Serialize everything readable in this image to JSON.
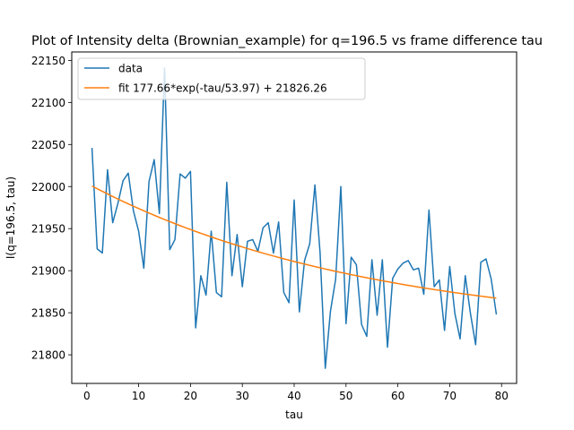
{
  "chart_data": {
    "type": "line",
    "title": "Plot of Intensity delta (Brownian_example) for q=196.5 vs frame difference tau",
    "xlabel": "tau",
    "ylabel": "I(q=196.5, tau)",
    "xlim": [
      -2.9,
      82.9
    ],
    "ylim": [
      21766,
      22160
    ],
    "xticks": [
      0,
      10,
      20,
      30,
      40,
      50,
      60,
      70,
      80
    ],
    "yticks": [
      21800,
      21850,
      21900,
      21950,
      22000,
      22050,
      22100,
      22150
    ],
    "grid": false,
    "legend_position": "top-left",
    "series": [
      {
        "name": "data",
        "color": "#1f77b4",
        "x": [
          1,
          2,
          3,
          4,
          5,
          6,
          7,
          8,
          9,
          10,
          11,
          12,
          13,
          14,
          15,
          16,
          17,
          18,
          19,
          20,
          21,
          22,
          23,
          24,
          25,
          26,
          27,
          28,
          29,
          30,
          31,
          32,
          33,
          34,
          35,
          36,
          37,
          38,
          39,
          40,
          41,
          42,
          43,
          44,
          45,
          46,
          47,
          48,
          49,
          50,
          51,
          52,
          53,
          54,
          55,
          56,
          57,
          58,
          59,
          60,
          61,
          62,
          63,
          64,
          65,
          66,
          67,
          68,
          69,
          70,
          71,
          72,
          73,
          74,
          75,
          76,
          77,
          78,
          79
        ],
        "y": [
          22046,
          21926,
          21921,
          22020,
          21957,
          21980,
          22007,
          22016,
          21971,
          21947,
          21903,
          22006,
          22032,
          21968,
          22141,
          21925,
          21937,
          22015,
          22010,
          22018,
          21832,
          21894,
          21871,
          21947,
          21874,
          21869,
          22005,
          21894,
          21943,
          21881,
          21935,
          21937,
          21923,
          21951,
          21957,
          21921,
          21958,
          21874,
          21862,
          21984,
          21851,
          21912,
          21932,
          22002,
          21921,
          21784,
          21852,
          21890,
          22000,
          21837,
          21916,
          21907,
          21836,
          21822,
          21913,
          21847,
          21913,
          21809,
          21891,
          21902,
          21909,
          21912,
          21901,
          21903,
          21872,
          21972,
          21881,
          21889,
          21829,
          21905,
          21849,
          21819,
          21894,
          21849,
          21812,
          21910,
          21914,
          21890,
          21848
        ]
      },
      {
        "name": "fit 177.66*exp(-tau/53.97) + 21826.26",
        "color": "#ff7f0e",
        "function": {
          "A": 177.66,
          "tau0": 53.97,
          "offset": 21826.26
        },
        "x_range": [
          1,
          79
        ]
      }
    ]
  }
}
